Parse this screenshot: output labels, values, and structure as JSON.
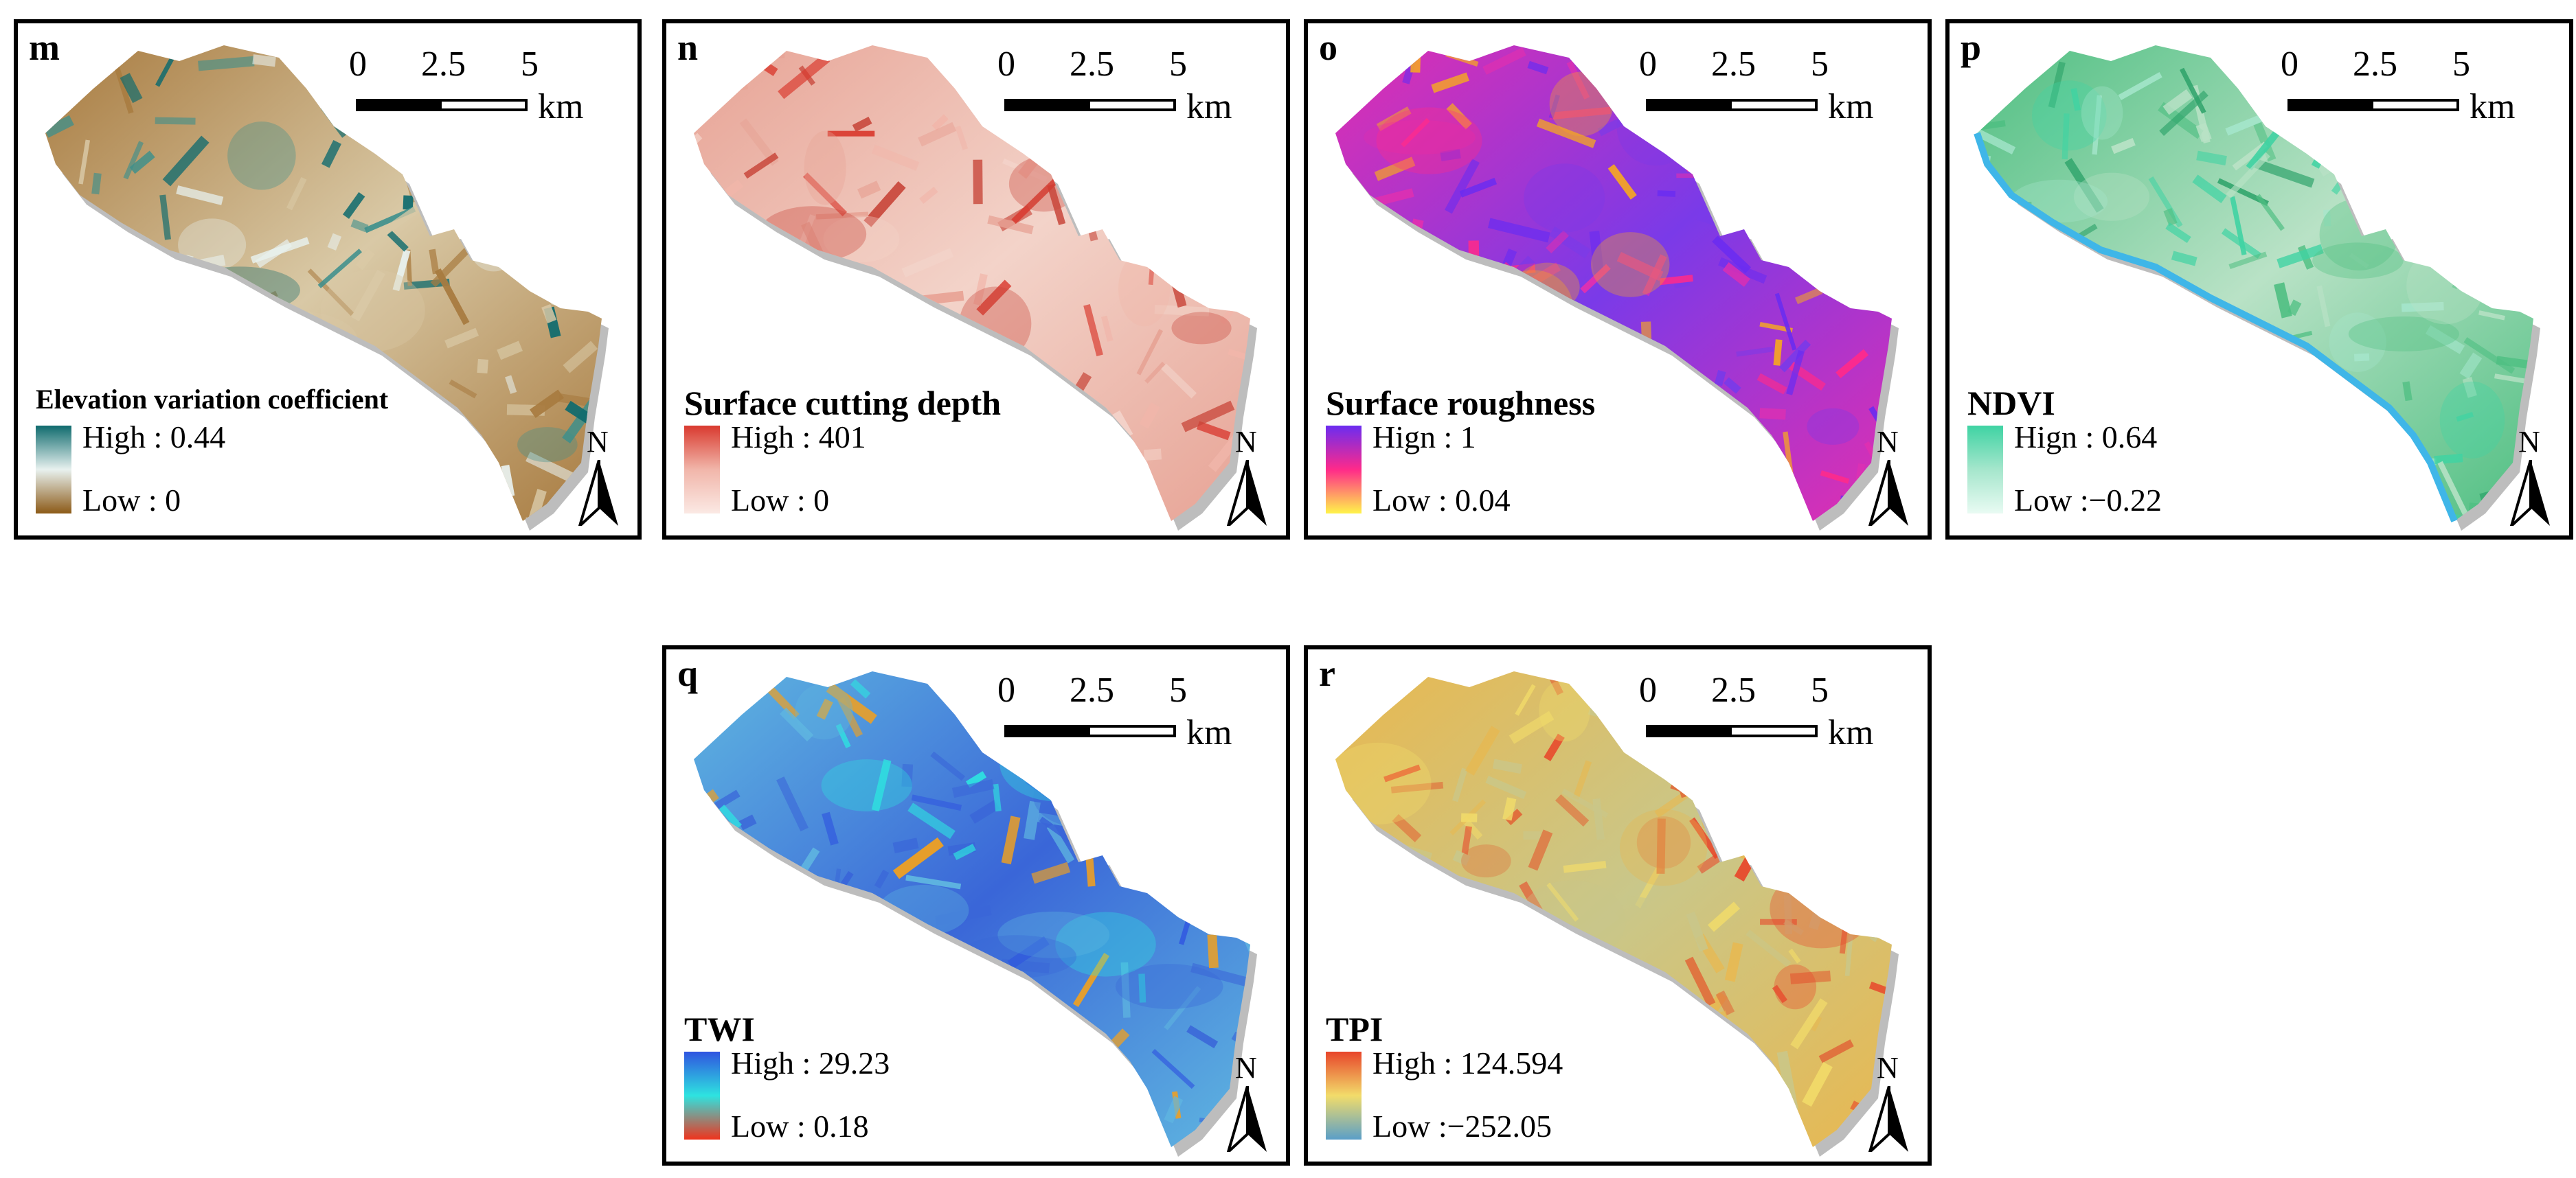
{
  "scalebar": {
    "ticks": [
      "0",
      "2.5",
      "5"
    ],
    "unit": "km"
  },
  "north_label": "N",
  "panels": [
    {
      "id": "m",
      "letter": "m",
      "legend_title": "Elevation variation coefficient",
      "high": "High : 0.44",
      "low": "Low : 0",
      "colors": {
        "high": "#0f6b6e",
        "mid": "#e8f1ef",
        "low": "#8c5a17",
        "fill_a": "#a87b40",
        "fill_b": "#d9c9a6",
        "fill_c": "#3c8f8c"
      }
    },
    {
      "id": "n",
      "letter": "n",
      "legend_title": "Surface cutting depth",
      "high": "High : 401",
      "low": "Low : 0",
      "colors": {
        "high": "#d93a2f",
        "mid": "#f1b6aa",
        "low": "#fbe9e4",
        "fill_a": "#e7a395",
        "fill_b": "#f3d3c9",
        "fill_c": "#c8463a"
      }
    },
    {
      "id": "o",
      "letter": "o",
      "legend_title": "Surface roughness",
      "high": "Hign : 1",
      "low": "Low : 0.04",
      "colors": {
        "high": "#6b2cf0",
        "mid": "#ff2a8a",
        "low": "#fff44a",
        "fill_a": "#e02fb0",
        "fill_b": "#7a3ae8",
        "fill_c": "#f5a623"
      }
    },
    {
      "id": "p",
      "letter": "p",
      "legend_title": "NDVI",
      "high": "Hign : 0.64",
      "low": "Low :−0.22",
      "colors": {
        "high": "#3fd3a3",
        "mid": "#a5e6cc",
        "low": "#e9fbf3",
        "fill_a": "#4fbf82",
        "fill_b": "#b9e2c6",
        "fill_c": "#2ea36a",
        "river": "#3fb6e8"
      }
    },
    {
      "id": "q",
      "letter": "q",
      "legend_title": "TWI",
      "high": "High : 29.23",
      "low": "Low : 0.18",
      "colors": {
        "high": "#2f54e0",
        "mid": "#2ee3e0",
        "low": "#f0331c",
        "fill_a": "#5fb6e0",
        "fill_b": "#3a66d8",
        "fill_c": "#f0a020"
      }
    },
    {
      "id": "r",
      "letter": "r",
      "legend_title": "TPI",
      "high": "High : 124.594",
      "low": "Low :−252.05",
      "colors": {
        "high": "#e8452a",
        "mid": "#f2dc6a",
        "low": "#5a9fc8",
        "fill_a": "#e8b850",
        "fill_b": "#c9c78a",
        "fill_c": "#e06a3a"
      }
    }
  ]
}
